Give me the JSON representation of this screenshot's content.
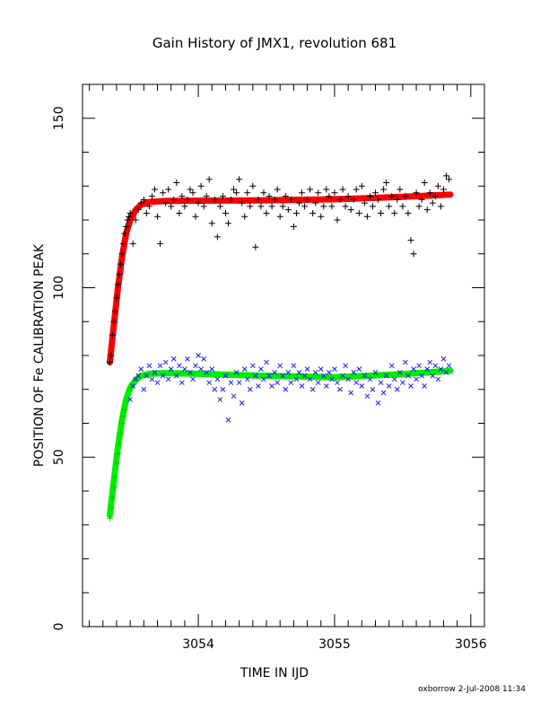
{
  "chart_data": {
    "type": "scatter",
    "title": "Gain History of JMX1, revolution 681",
    "xlabel": "TIME IN IJD",
    "ylabel": "POSITION OF Fe CALIBRATION PEAK",
    "xlim": [
      3053.15,
      3056.1
    ],
    "ylim": [
      0,
      160
    ],
    "x_ticks": [
      3054,
      3055,
      3056
    ],
    "x_tick_labels": [
      "3054",
      "3055",
      "3056"
    ],
    "y_ticks": [
      0,
      50,
      100,
      150
    ],
    "y_tick_labels": [
      "0",
      "50",
      "100",
      "150"
    ],
    "grid": false,
    "legend": "none",
    "series": [
      {
        "marker": "plus",
        "color": "#000000",
        "points": [
          [
            3053.35,
            78
          ],
          [
            3053.36,
            80
          ],
          [
            3053.37,
            86
          ],
          [
            3053.38,
            90
          ],
          [
            3053.39,
            93
          ],
          [
            3053.4,
            97
          ],
          [
            3053.41,
            101
          ],
          [
            3053.42,
            104
          ],
          [
            3053.43,
            107
          ],
          [
            3053.44,
            110
          ],
          [
            3053.45,
            113
          ],
          [
            3053.46,
            116
          ],
          [
            3053.47,
            118
          ],
          [
            3053.48,
            120
          ],
          [
            3053.49,
            121
          ],
          [
            3053.5,
            122
          ],
          [
            3053.52,
            113
          ],
          [
            3053.54,
            120
          ],
          [
            3053.56,
            123
          ],
          [
            3053.58,
            125
          ],
          [
            3053.6,
            126
          ],
          [
            3053.62,
            122
          ],
          [
            3053.64,
            124
          ],
          [
            3053.66,
            127
          ],
          [
            3053.68,
            129
          ],
          [
            3053.7,
            121
          ],
          [
            3053.72,
            113
          ],
          [
            3053.74,
            128
          ],
          [
            3053.76,
            125
          ],
          [
            3053.78,
            129
          ],
          [
            3053.8,
            124
          ],
          [
            3053.82,
            126
          ],
          [
            3053.84,
            131
          ],
          [
            3053.86,
            122
          ],
          [
            3053.88,
            127
          ],
          [
            3053.9,
            124
          ],
          [
            3053.92,
            126
          ],
          [
            3053.94,
            129
          ],
          [
            3053.96,
            128
          ],
          [
            3053.98,
            121
          ],
          [
            3054.0,
            125
          ],
          [
            3054.02,
            130
          ],
          [
            3054.04,
            124
          ],
          [
            3054.06,
            127
          ],
          [
            3054.08,
            132
          ],
          [
            3054.1,
            119
          ],
          [
            3054.12,
            126
          ],
          [
            3054.14,
            115
          ],
          [
            3054.16,
            124
          ],
          [
            3054.18,
            127
          ],
          [
            3054.2,
            122
          ],
          [
            3054.22,
            119
          ],
          [
            3054.24,
            126
          ],
          [
            3054.26,
            129
          ],
          [
            3054.28,
            128
          ],
          [
            3054.3,
            132
          ],
          [
            3054.32,
            125
          ],
          [
            3054.34,
            121
          ],
          [
            3054.36,
            128
          ],
          [
            3054.38,
            124
          ],
          [
            3054.4,
            130
          ],
          [
            3054.42,
            112
          ],
          [
            3054.44,
            126
          ],
          [
            3054.46,
            124
          ],
          [
            3054.48,
            128
          ],
          [
            3054.5,
            122
          ],
          [
            3054.52,
            127
          ],
          [
            3054.54,
            124
          ],
          [
            3054.56,
            126
          ],
          [
            3054.58,
            129
          ],
          [
            3054.6,
            121
          ],
          [
            3054.62,
            124
          ],
          [
            3054.64,
            127
          ],
          [
            3054.66,
            123
          ],
          [
            3054.68,
            126
          ],
          [
            3054.7,
            118
          ],
          [
            3054.72,
            122
          ],
          [
            3054.74,
            125
          ],
          [
            3054.76,
            128
          ],
          [
            3054.78,
            124
          ],
          [
            3054.8,
            126
          ],
          [
            3054.82,
            129
          ],
          [
            3054.84,
            122
          ],
          [
            3054.86,
            125
          ],
          [
            3054.88,
            128
          ],
          [
            3054.9,
            121
          ],
          [
            3054.92,
            124
          ],
          [
            3054.94,
            129
          ],
          [
            3054.96,
            127
          ],
          [
            3054.98,
            124
          ],
          [
            3055.0,
            128
          ],
          [
            3055.02,
            120
          ],
          [
            3055.04,
            126
          ],
          [
            3055.06,
            129
          ],
          [
            3055.08,
            124
          ],
          [
            3055.1,
            127
          ],
          [
            3055.12,
            123
          ],
          [
            3055.14,
            126
          ],
          [
            3055.16,
            129
          ],
          [
            3055.18,
            122
          ],
          [
            3055.2,
            130
          ],
          [
            3055.22,
            125
          ],
          [
            3055.24,
            121
          ],
          [
            3055.26,
            127
          ],
          [
            3055.28,
            124
          ],
          [
            3055.3,
            128
          ],
          [
            3055.32,
            126
          ],
          [
            3055.34,
            122
          ],
          [
            3055.36,
            129
          ],
          [
            3055.38,
            131
          ],
          [
            3055.4,
            124
          ],
          [
            3055.42,
            127
          ],
          [
            3055.44,
            122
          ],
          [
            3055.46,
            126
          ],
          [
            3055.48,
            129
          ],
          [
            3055.5,
            124
          ],
          [
            3055.52,
            127
          ],
          [
            3055.54,
            122
          ],
          [
            3055.56,
            114
          ],
          [
            3055.58,
            110
          ],
          [
            3055.6,
            128
          ],
          [
            3055.62,
            124
          ],
          [
            3055.64,
            126
          ],
          [
            3055.66,
            131
          ],
          [
            3055.68,
            123
          ],
          [
            3055.7,
            128
          ],
          [
            3055.72,
            125
          ],
          [
            3055.74,
            127
          ],
          [
            3055.76,
            130
          ],
          [
            3055.78,
            124
          ],
          [
            3055.8,
            129
          ],
          [
            3055.82,
            133
          ],
          [
            3055.84,
            132
          ]
        ]
      },
      {
        "marker": "cross",
        "color": "#1a1aff",
        "points": [
          [
            3053.5,
            67
          ],
          [
            3053.52,
            71
          ],
          [
            3053.54,
            73
          ],
          [
            3053.56,
            74
          ],
          [
            3053.58,
            76
          ],
          [
            3053.6,
            70
          ],
          [
            3053.62,
            74
          ],
          [
            3053.64,
            77
          ],
          [
            3053.66,
            73
          ],
          [
            3053.68,
            75
          ],
          [
            3053.7,
            72
          ],
          [
            3053.72,
            77
          ],
          [
            3053.74,
            74
          ],
          [
            3053.76,
            78
          ],
          [
            3053.78,
            73
          ],
          [
            3053.8,
            76
          ],
          [
            3053.82,
            79
          ],
          [
            3053.84,
            74
          ],
          [
            3053.86,
            77
          ],
          [
            3053.88,
            72
          ],
          [
            3053.9,
            76
          ],
          [
            3053.92,
            79
          ],
          [
            3053.94,
            75
          ],
          [
            3053.96,
            73
          ],
          [
            3053.98,
            77
          ],
          [
            3054.0,
            80
          ],
          [
            3054.02,
            76
          ],
          [
            3054.04,
            79
          ],
          [
            3054.06,
            75
          ],
          [
            3054.08,
            72
          ],
          [
            3054.1,
            76
          ],
          [
            3054.12,
            70
          ],
          [
            3054.14,
            73
          ],
          [
            3054.16,
            67
          ],
          [
            3054.18,
            70
          ],
          [
            3054.2,
            74
          ],
          [
            3054.22,
            61
          ],
          [
            3054.24,
            72
          ],
          [
            3054.26,
            68
          ],
          [
            3054.28,
            75
          ],
          [
            3054.3,
            72
          ],
          [
            3054.32,
            66
          ],
          [
            3054.34,
            76
          ],
          [
            3054.36,
            73
          ],
          [
            3054.38,
            70
          ],
          [
            3054.4,
            77
          ],
          [
            3054.42,
            74
          ],
          [
            3054.44,
            71
          ],
          [
            3054.46,
            76
          ],
          [
            3054.48,
            73
          ],
          [
            3054.5,
            78
          ],
          [
            3054.52,
            74
          ],
          [
            3054.54,
            71
          ],
          [
            3054.56,
            75
          ],
          [
            3054.58,
            72
          ],
          [
            3054.6,
            77
          ],
          [
            3054.62,
            74
          ],
          [
            3054.64,
            70
          ],
          [
            3054.66,
            75
          ],
          [
            3054.68,
            72
          ],
          [
            3054.7,
            77
          ],
          [
            3054.72,
            73
          ],
          [
            3054.74,
            75
          ],
          [
            3054.76,
            71
          ],
          [
            3054.78,
            74
          ],
          [
            3054.8,
            76
          ],
          [
            3054.82,
            73
          ],
          [
            3054.84,
            70
          ],
          [
            3054.86,
            75
          ],
          [
            3054.88,
            72
          ],
          [
            3054.9,
            76
          ],
          [
            3054.92,
            74
          ],
          [
            3054.94,
            71
          ],
          [
            3054.96,
            75
          ],
          [
            3054.98,
            73
          ],
          [
            3055.0,
            76
          ],
          [
            3055.02,
            72
          ],
          [
            3055.04,
            70
          ],
          [
            3055.06,
            74
          ],
          [
            3055.08,
            77
          ],
          [
            3055.1,
            73
          ],
          [
            3055.12,
            69
          ],
          [
            3055.14,
            75
          ],
          [
            3055.16,
            72
          ],
          [
            3055.18,
            76
          ],
          [
            3055.2,
            71
          ],
          [
            3055.22,
            74
          ],
          [
            3055.24,
            68
          ],
          [
            3055.26,
            73
          ],
          [
            3055.28,
            70
          ],
          [
            3055.3,
            75
          ],
          [
            3055.32,
            66
          ],
          [
            3055.34,
            72
          ],
          [
            3055.36,
            69
          ],
          [
            3055.38,
            74
          ],
          [
            3055.4,
            71
          ],
          [
            3055.42,
            77
          ],
          [
            3055.44,
            73
          ],
          [
            3055.46,
            70
          ],
          [
            3055.48,
            75
          ],
          [
            3055.5,
            72
          ],
          [
            3055.52,
            78
          ],
          [
            3055.54,
            74
          ],
          [
            3055.56,
            71
          ],
          [
            3055.58,
            76
          ],
          [
            3055.6,
            73
          ],
          [
            3055.62,
            77
          ],
          [
            3055.64,
            74
          ],
          [
            3055.66,
            71
          ],
          [
            3055.68,
            76
          ],
          [
            3055.7,
            78
          ],
          [
            3055.72,
            74
          ],
          [
            3055.74,
            77
          ],
          [
            3055.76,
            73
          ],
          [
            3055.78,
            76
          ],
          [
            3055.8,
            79
          ],
          [
            3055.82,
            75
          ],
          [
            3055.84,
            77
          ]
        ]
      },
      {
        "marker": "plus",
        "color": "#00cc00",
        "points": [
          [
            3053.35,
            32
          ],
          [
            3053.36,
            35
          ],
          [
            3053.37,
            38
          ],
          [
            3053.38,
            41
          ],
          [
            3053.39,
            44
          ],
          [
            3053.4,
            48
          ],
          [
            3053.41,
            51
          ],
          [
            3053.42,
            54
          ],
          [
            3053.43,
            57
          ],
          [
            3053.44,
            60
          ],
          [
            3053.45,
            62
          ],
          [
            3053.46,
            64
          ]
        ]
      }
    ],
    "fit_curves": [
      {
        "color": "#ff0000",
        "x": [
          3053.35,
          3053.38,
          3053.41,
          3053.44,
          3053.47,
          3053.5,
          3053.54,
          3053.58,
          3053.64,
          3053.75,
          3054.0,
          3054.5,
          3055.0,
          3055.5,
          3055.85
        ],
        "y": [
          78,
          89,
          100,
          109,
          116,
          120,
          123,
          124.5,
          125.3,
          125.6,
          125.7,
          125.8,
          126.1,
          126.8,
          127.5
        ]
      },
      {
        "color": "#00ee00",
        "x": [
          3053.35,
          3053.38,
          3053.41,
          3053.44,
          3053.47,
          3053.5,
          3053.54,
          3053.58,
          3053.64,
          3053.75,
          3054.0,
          3054.5,
          3055.0,
          3055.5,
          3055.85
        ],
        "y": [
          33,
          43,
          53,
          61,
          67,
          70.5,
          72.8,
          74,
          74.6,
          74.8,
          74.6,
          74,
          73.6,
          74.5,
          75.5
        ]
      }
    ]
  },
  "footer": {
    "stamp": "oxborrow  2-Jul-2008 11:34"
  }
}
